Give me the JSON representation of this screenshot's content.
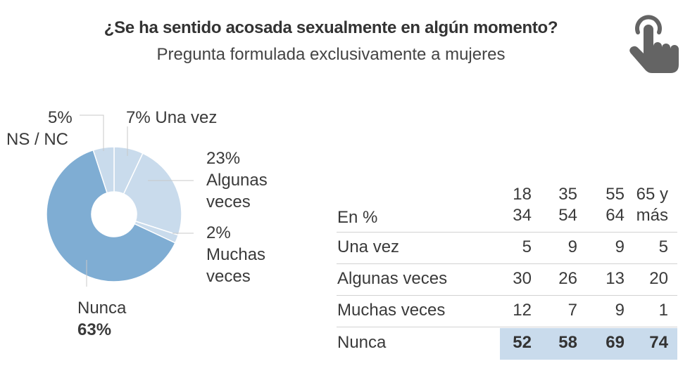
{
  "header": {
    "title": "¿Se ha sentido acosada sexualmente en algún momento?",
    "subtitle": "Pregunta formulada exclusivamente a mujeres",
    "icon": "hand-pointer-tap-icon"
  },
  "colors": {
    "nunca": "#7fadd3",
    "light": "#c9dbec",
    "text": "#3a3a3a",
    "highlight": "#c9dbec",
    "icon": "#646464"
  },
  "chart_data": [
    {
      "type": "pie",
      "title": "¿Se ha sentido acosada sexualmente en algún momento?",
      "donut": true,
      "start": "top",
      "direction": "clockwise",
      "slices": [
        {
          "name": "Una vez",
          "value": 7,
          "pct_label": "7%",
          "label": "Una vez"
        },
        {
          "name": "Algunas veces",
          "value": 23,
          "pct_label": "23%",
          "label_l1": "Algunas",
          "label_l2": "veces"
        },
        {
          "name": "Muchas veces",
          "value": 2,
          "pct_label": "2%",
          "label_l1": "Muchas",
          "label_l2": "veces"
        },
        {
          "name": "Nunca",
          "value": 63,
          "pct_label": "63%",
          "label": "Nunca"
        },
        {
          "name": "NS / NC",
          "value": 5,
          "pct_label": "5%",
          "label": "NS / NC"
        }
      ]
    },
    {
      "type": "table",
      "unit_label": "En %",
      "columns": [
        {
          "l1": "18",
          "l2": "34"
        },
        {
          "l1": "35",
          "l2": "54"
        },
        {
          "l1": "55",
          "l2": "64"
        },
        {
          "l1": "65 y",
          "l2": "más"
        }
      ],
      "rows": [
        {
          "label": "Una vez",
          "values": [
            "5",
            "9",
            "9",
            "5"
          ]
        },
        {
          "label": "Algunas veces",
          "values": [
            "30",
            "26",
            "13",
            "20"
          ]
        },
        {
          "label": "Muchas veces",
          "values": [
            "12",
            "7",
            "9",
            "1"
          ]
        },
        {
          "label": "Nunca",
          "values": [
            "52",
            "58",
            "69",
            "74"
          ],
          "highlight": true
        }
      ]
    }
  ]
}
